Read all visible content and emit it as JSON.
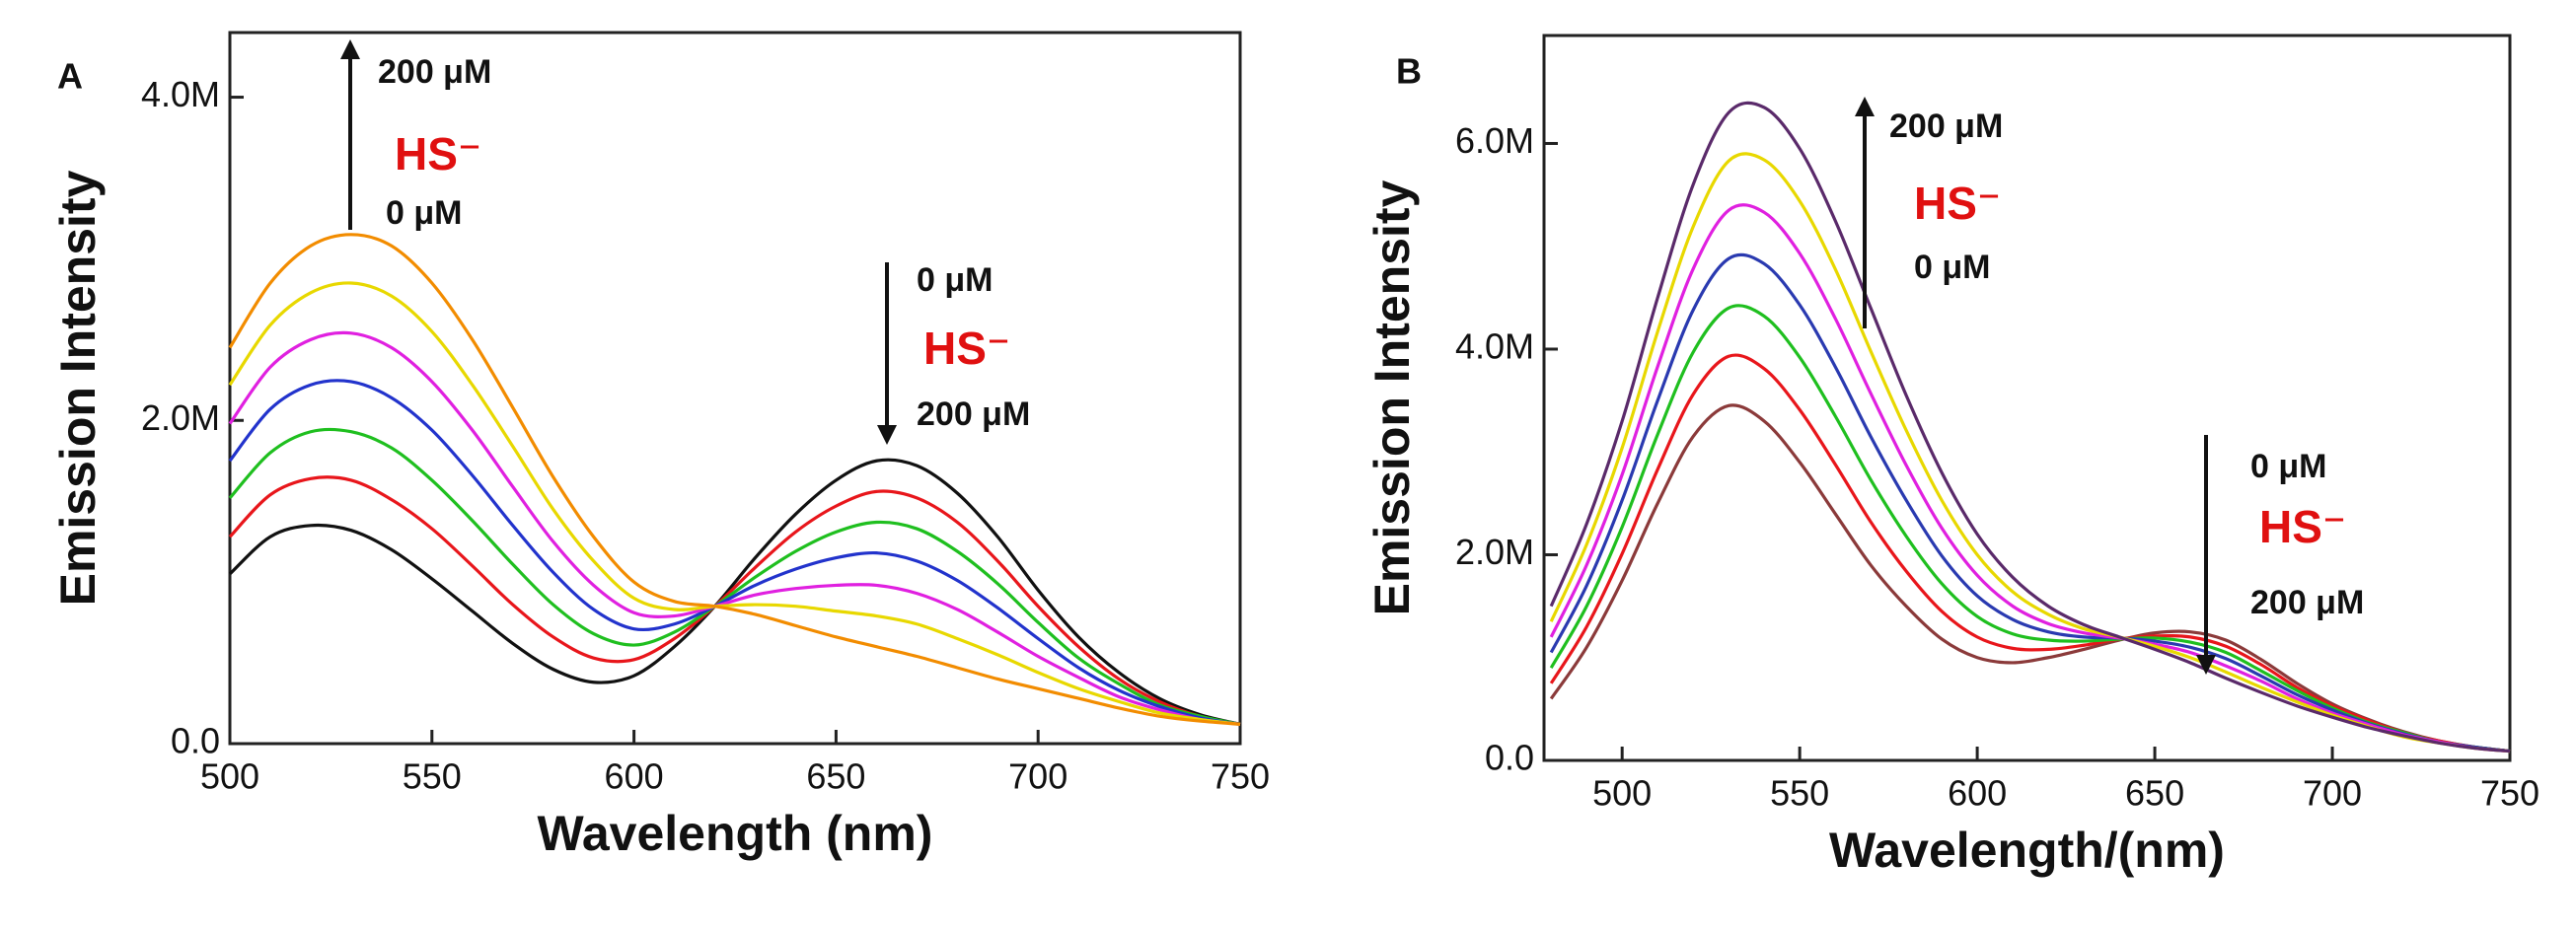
{
  "chart_data": [
    {
      "type": "line",
      "ylabel": "Emission Intensity",
      "xlabel": "Wavelength (nm)",
      "annotations": [
        "A",
        "200 μM",
        "HS⁻",
        "0 μM",
        "0 μM",
        "HS⁻",
        "200 μM"
      ],
      "xlim": [
        500,
        750
      ],
      "xticks": [
        500,
        550,
        600,
        650,
        700,
        750
      ],
      "ylim": [
        0,
        4.4
      ],
      "yticks": [
        {
          "value": 0,
          "label": "0.0"
        },
        {
          "value": 2,
          "label": "2.0M"
        },
        {
          "value": 4,
          "label": "4.0M"
        }
      ],
      "x": [
        500,
        510,
        520,
        530,
        540,
        550,
        560,
        570,
        580,
        590,
        600,
        610,
        620,
        630,
        640,
        650,
        660,
        670,
        680,
        690,
        700,
        710,
        720,
        730,
        740,
        750
      ],
      "series": [
        {
          "color": "#111111",
          "values": [
            1.05,
            1.28,
            1.35,
            1.32,
            1.2,
            1.02,
            0.82,
            0.62,
            0.46,
            0.38,
            0.42,
            0.6,
            0.85,
            1.15,
            1.42,
            1.63,
            1.75,
            1.72,
            1.55,
            1.28,
            0.95,
            0.66,
            0.44,
            0.28,
            0.18,
            0.12
          ]
        },
        {
          "color": "#e8161b",
          "values": [
            1.28,
            1.54,
            1.64,
            1.63,
            1.51,
            1.33,
            1.1,
            0.86,
            0.66,
            0.53,
            0.52,
            0.65,
            0.85,
            1.09,
            1.31,
            1.47,
            1.56,
            1.52,
            1.37,
            1.13,
            0.85,
            0.6,
            0.4,
            0.26,
            0.17,
            0.12
          ]
        },
        {
          "color": "#1fbf1f",
          "values": [
            1.52,
            1.8,
            1.93,
            1.93,
            1.83,
            1.63,
            1.38,
            1.11,
            0.86,
            0.68,
            0.61,
            0.69,
            0.85,
            1.03,
            1.19,
            1.31,
            1.37,
            1.33,
            1.19,
            0.99,
            0.75,
            0.53,
            0.37,
            0.24,
            0.17,
            0.12
          ]
        },
        {
          "color": "#2233cc",
          "values": [
            1.75,
            2.07,
            2.22,
            2.24,
            2.14,
            1.94,
            1.66,
            1.35,
            1.06,
            0.83,
            0.71,
            0.74,
            0.85,
            0.98,
            1.08,
            1.15,
            1.18,
            1.13,
            1.01,
            0.84,
            0.65,
            0.47,
            0.33,
            0.23,
            0.16,
            0.12
          ]
        },
        {
          "color": "#e020e0",
          "values": [
            1.98,
            2.33,
            2.5,
            2.54,
            2.45,
            2.24,
            1.94,
            1.59,
            1.25,
            0.98,
            0.81,
            0.79,
            0.85,
            0.92,
            0.96,
            0.98,
            0.98,
            0.93,
            0.83,
            0.69,
            0.54,
            0.41,
            0.29,
            0.21,
            0.15,
            0.12
          ]
        },
        {
          "color": "#e8d800",
          "values": [
            2.22,
            2.59,
            2.79,
            2.85,
            2.77,
            2.55,
            2.22,
            1.84,
            1.45,
            1.13,
            0.9,
            0.83,
            0.85,
            0.86,
            0.85,
            0.82,
            0.79,
            0.74,
            0.65,
            0.55,
            0.44,
            0.34,
            0.26,
            0.19,
            0.15,
            0.12
          ]
        },
        {
          "color": "#f28c00",
          "values": [
            2.45,
            2.85,
            3.08,
            3.15,
            3.08,
            2.85,
            2.5,
            2.08,
            1.65,
            1.28,
            1.0,
            0.88,
            0.85,
            0.8,
            0.73,
            0.66,
            0.6,
            0.54,
            0.47,
            0.4,
            0.34,
            0.28,
            0.22,
            0.17,
            0.14,
            0.12
          ]
        }
      ]
    },
    {
      "type": "line",
      "ylabel": "Emission Intensity",
      "xlabel": "Wavelength/(nm)",
      "annotations": [
        "B",
        "200 μM",
        "HS⁻",
        "0 μM",
        "0 μM",
        "HS⁻",
        "200 μM"
      ],
      "xlim": [
        478,
        750
      ],
      "xticks": [
        500,
        550,
        600,
        650,
        700,
        750
      ],
      "ylim": [
        0,
        7.05
      ],
      "yticks": [
        {
          "value": 0,
          "label": "0.0"
        },
        {
          "value": 2,
          "label": "2.0M"
        },
        {
          "value": 4,
          "label": "4.0M"
        },
        {
          "value": 6,
          "label": "6.0M"
        }
      ],
      "x": [
        480,
        490,
        500,
        510,
        520,
        530,
        540,
        550,
        560,
        570,
        580,
        590,
        600,
        610,
        620,
        630,
        640,
        650,
        660,
        670,
        680,
        690,
        700,
        710,
        720,
        730,
        740,
        750
      ],
      "series": [
        {
          "color": "#8b3a3a",
          "values": [
            0.6,
            1.1,
            1.75,
            2.5,
            3.15,
            3.45,
            3.3,
            2.9,
            2.4,
            1.9,
            1.5,
            1.18,
            1.0,
            0.95,
            1.0,
            1.08,
            1.17,
            1.24,
            1.25,
            1.17,
            0.98,
            0.75,
            0.55,
            0.4,
            0.28,
            0.19,
            0.13,
            0.09
          ]
        },
        {
          "color": "#e8161b",
          "values": [
            0.75,
            1.3,
            2.01,
            2.83,
            3.56,
            3.93,
            3.81,
            3.41,
            2.88,
            2.32,
            1.84,
            1.45,
            1.2,
            1.09,
            1.08,
            1.12,
            1.18,
            1.21,
            1.2,
            1.11,
            0.93,
            0.71,
            0.53,
            0.39,
            0.27,
            0.19,
            0.13,
            0.09
          ]
        },
        {
          "color": "#1fbf1f",
          "values": [
            0.9,
            1.5,
            2.27,
            3.17,
            3.97,
            4.4,
            4.32,
            3.92,
            3.35,
            2.73,
            2.18,
            1.72,
            1.4,
            1.23,
            1.17,
            1.16,
            1.18,
            1.19,
            1.15,
            1.05,
            0.87,
            0.68,
            0.51,
            0.37,
            0.27,
            0.18,
            0.13,
            0.09
          ]
        },
        {
          "color": "#2a3ab0",
          "values": [
            1.05,
            1.7,
            2.53,
            3.5,
            4.38,
            4.88,
            4.83,
            4.43,
            3.83,
            3.15,
            2.53,
            1.99,
            1.6,
            1.37,
            1.25,
            1.2,
            1.19,
            1.16,
            1.1,
            0.99,
            0.82,
            0.64,
            0.49,
            0.36,
            0.26,
            0.18,
            0.13,
            0.09
          ]
        },
        {
          "color": "#e020e0",
          "values": [
            1.2,
            1.9,
            2.78,
            3.83,
            4.78,
            5.35,
            5.33,
            4.93,
            4.3,
            3.57,
            2.87,
            2.26,
            1.8,
            1.5,
            1.33,
            1.24,
            1.19,
            1.13,
            1.05,
            0.92,
            0.77,
            0.6,
            0.46,
            0.35,
            0.25,
            0.18,
            0.12,
            0.09
          ]
        },
        {
          "color": "#e8d800",
          "values": [
            1.35,
            2.1,
            3.04,
            4.17,
            5.19,
            5.83,
            5.84,
            5.44,
            4.78,
            3.98,
            3.21,
            2.53,
            2.0,
            1.64,
            1.42,
            1.28,
            1.2,
            1.11,
            1.0,
            0.86,
            0.71,
            0.57,
            0.44,
            0.33,
            0.23,
            0.17,
            0.12,
            0.09
          ]
        },
        {
          "color": "#5a2a6a",
          "values": [
            1.5,
            2.3,
            3.3,
            4.5,
            5.6,
            6.3,
            6.35,
            5.95,
            5.25,
            4.4,
            3.55,
            2.8,
            2.2,
            1.78,
            1.5,
            1.32,
            1.2,
            1.08,
            0.95,
            0.8,
            0.66,
            0.53,
            0.42,
            0.32,
            0.24,
            0.17,
            0.12,
            0.09
          ]
        }
      ]
    }
  ]
}
